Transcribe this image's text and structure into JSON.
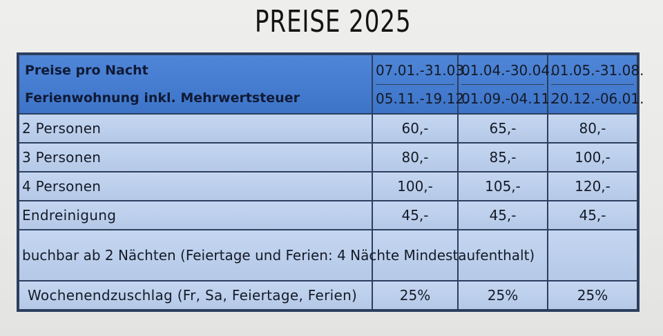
{
  "title": "PREISE 2025",
  "table": {
    "header": {
      "line1": "Preise pro Nacht",
      "line2": "Ferienwohnung inkl. Mehrwertsteuer",
      "seasons": [
        {
          "line1": "07.01.-31.03.",
          "line2": "05.11.-19.12."
        },
        {
          "line1": "01.04.-30.04.",
          "line2": "01.09.-04.11."
        },
        {
          "line1": "01.05.-31.08.",
          "line2": "20.12.-06.01."
        }
      ]
    },
    "rows": [
      {
        "label": "2 Personen",
        "values": [
          "60,-",
          "65,-",
          "80,-"
        ]
      },
      {
        "label": "3 Personen",
        "values": [
          "80,-",
          "85,-",
          "100,-"
        ]
      },
      {
        "label": "4 Personen",
        "values": [
          "100,-",
          "105,-",
          "120,-"
        ]
      },
      {
        "label": "Endreinigung",
        "values": [
          "45,-",
          "45,-",
          "45,-"
        ]
      }
    ],
    "note": "buchbar ab 2 Nächten (Feiertage und Ferien: 4 Nächte Mindestaufenthalt)",
    "surcharge": {
      "label": "Wochenendzuschlag (Fr, Sa, Feiertage, Ferien)",
      "values": [
        "25%",
        "25%",
        "25%"
      ]
    }
  }
}
